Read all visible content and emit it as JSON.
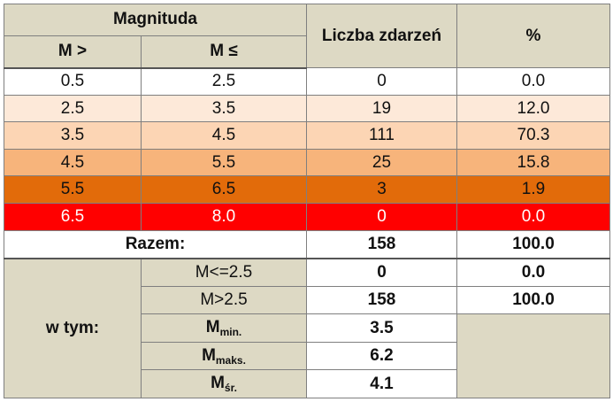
{
  "header": {
    "magnitude": "Magnituda",
    "m_greater": "M >",
    "m_less_equal": "M ≤",
    "event_count": "Liczba zdarzeń",
    "percent": "%"
  },
  "rows": [
    {
      "from": "0.5",
      "to": "2.5",
      "count": "0",
      "pct": "0.0",
      "color": "#ffffff"
    },
    {
      "from": "2.5",
      "to": "3.5",
      "count": "19",
      "pct": "12.0",
      "color": "#fde9d9"
    },
    {
      "from": "3.5",
      "to": "4.5",
      "count": "111",
      "pct": "70.3",
      "color": "#fcd5b4"
    },
    {
      "from": "4.5",
      "to": "5.5",
      "count": "25",
      "pct": "15.8",
      "color": "#f7b47b"
    },
    {
      "from": "5.5",
      "to": "6.5",
      "count": "3",
      "pct": "1.9",
      "color": "#e26b0a"
    },
    {
      "from": "6.5",
      "to": "8.0",
      "count": "0",
      "pct": "0.0",
      "color": "#ff0000"
    }
  ],
  "total": {
    "label": "Razem:",
    "count": "158",
    "pct": "100.0"
  },
  "breakdown": {
    "label": "w tym:",
    "le25": {
      "label": "M<=2.5",
      "count": "0",
      "pct": "0.0"
    },
    "gt25": {
      "label": "M>2.5",
      "count": "158",
      "pct": "100.0"
    },
    "min": {
      "base": "M",
      "sub": "min.",
      "value": "3.5"
    },
    "max": {
      "base": "M",
      "sub": "maks.",
      "value": "6.2"
    },
    "avg": {
      "base": "M",
      "sub": "śr.",
      "value": "4.1"
    }
  }
}
